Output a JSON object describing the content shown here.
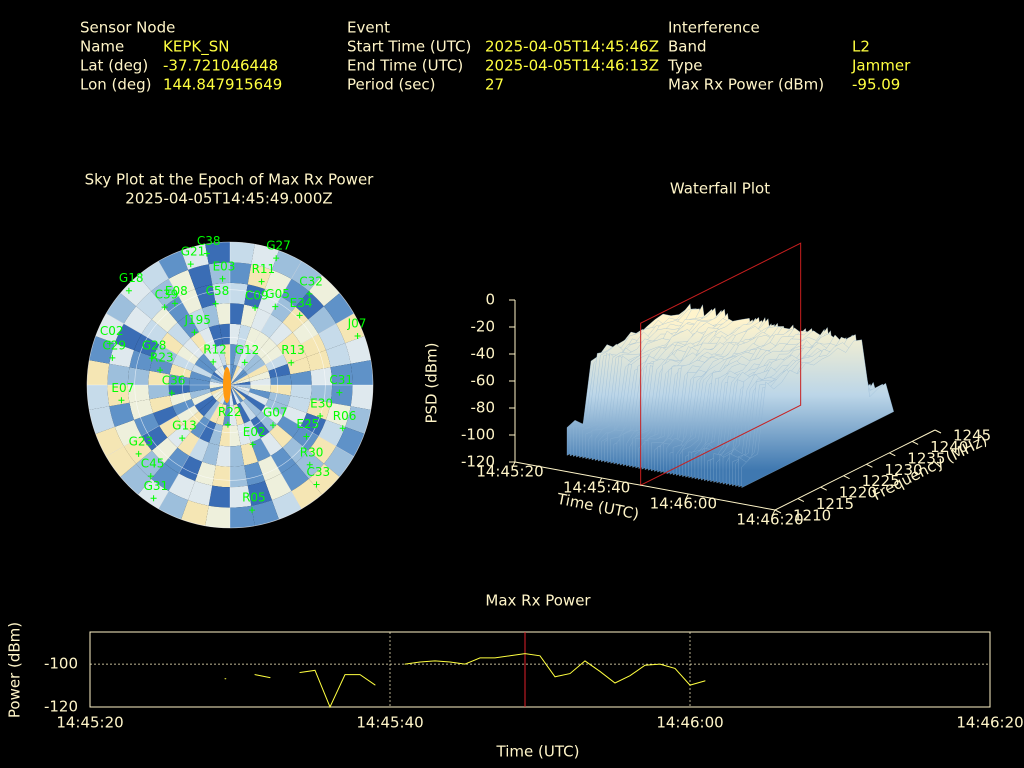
{
  "header": {
    "sensor_node": {
      "title": "Sensor Node",
      "rows": [
        [
          "Name",
          "KEPK_SN"
        ],
        [
          "Lat (deg)",
          "-37.721046448"
        ],
        [
          "Lon (deg)",
          "144.847915649"
        ]
      ]
    },
    "event": {
      "title": "Event",
      "rows": [
        [
          "Start Time (UTC)",
          "2025-04-05T14:45:46Z"
        ],
        [
          "End Time (UTC)",
          "2025-04-05T14:46:13Z"
        ],
        [
          "Period (sec)",
          "27"
        ]
      ]
    },
    "interference": {
      "title": "Interference",
      "rows": [
        [
          "Band",
          "L2"
        ],
        [
          "Type",
          "Jammer"
        ],
        [
          "Max Rx Power (dBm)",
          "-95.09"
        ]
      ]
    }
  },
  "chart_data": [
    {
      "type": "skyplot",
      "title": "Sky Plot at the Epoch of Max Rx Power",
      "subtitle": "2025-04-05T14:45:49.000Z",
      "color": "#00ff00",
      "satellites": [
        {
          "name": "C38",
          "az": 350,
          "el": 6
        },
        {
          "name": "G21",
          "az": 342,
          "el": 10
        },
        {
          "name": "E03",
          "az": 356,
          "el": 23
        },
        {
          "name": "R11",
          "az": 17,
          "el": 22
        },
        {
          "name": "G27",
          "az": 20,
          "el": 5
        },
        {
          "name": "C32",
          "az": 41,
          "el": 14
        },
        {
          "name": "E34",
          "az": 45,
          "el": 28
        },
        {
          "name": "G05",
          "az": 30,
          "el": 33
        },
        {
          "name": "C09",
          "az": 18,
          "el": 39
        },
        {
          "name": "J07",
          "az": 69,
          "el": 4
        },
        {
          "name": "G18",
          "az": 313,
          "el": 3
        },
        {
          "name": "E08",
          "az": 326,
          "el": 28
        },
        {
          "name": "C58",
          "az": 350,
          "el": 38
        },
        {
          "name": "C39",
          "az": 320,
          "el": 26
        },
        {
          "name": "J195",
          "az": 326,
          "el": 50
        },
        {
          "name": "C02",
          "az": 289,
          "el": 10
        },
        {
          "name": "C29",
          "az": 283,
          "el": 14
        },
        {
          "name": "G28",
          "az": 289,
          "el": 38
        },
        {
          "name": "R23",
          "az": 282,
          "el": 45
        },
        {
          "name": "R12",
          "az": 324,
          "el": 72
        },
        {
          "name": "G12",
          "az": 33,
          "el": 73
        },
        {
          "name": "R13",
          "az": 70,
          "el": 49
        },
        {
          "name": "C31",
          "az": 94,
          "el": 21
        },
        {
          "name": "E07",
          "az": 262,
          "el": 21
        },
        {
          "name": "C36",
          "az": 262,
          "el": 53
        },
        {
          "name": "R22",
          "az": 183,
          "el": 65
        },
        {
          "name": "G07",
          "az": 133,
          "el": 53
        },
        {
          "name": "E30",
          "az": 109,
          "el": 30
        },
        {
          "name": "R06",
          "az": 111,
          "el": 14
        },
        {
          "name": "E25",
          "az": 124,
          "el": 32
        },
        {
          "name": "G13",
          "az": 222,
          "el": 45
        },
        {
          "name": "E02",
          "az": 159,
          "el": 50
        },
        {
          "name": "G23",
          "az": 233,
          "el": 18
        },
        {
          "name": "R30",
          "az": 135,
          "el": 19
        },
        {
          "name": "C45",
          "az": 221,
          "el": 14
        },
        {
          "name": "G31",
          "az": 214,
          "el": 4
        },
        {
          "name": "R05",
          "az": 170,
          "el": 10
        },
        {
          "name": "C33",
          "az": 139,
          "el": 7
        }
      ]
    },
    {
      "type": "waterfall",
      "title": "Waterfall Plot",
      "zlabel": "PSD (dBm)",
      "xlabel": "Time (UTC)",
      "ylabel": "Frequency (MHz)",
      "zlim": [
        -120,
        0
      ],
      "zticks": [
        0,
        -20,
        -40,
        -60,
        -80,
        -100,
        -120
      ],
      "xlim": [
        "14:45:20",
        "14:46:20"
      ],
      "xticks": [
        "14:45:20",
        "14:45:40",
        "14:46:00",
        "14:46:20"
      ],
      "ylim": [
        1210,
        1245
      ],
      "yticks": [
        1210,
        1215,
        1220,
        1225,
        1230,
        1235,
        1240,
        1245
      ],
      "cursor": "14:45:49",
      "cursor_color": "#c81e1e"
    },
    {
      "type": "line",
      "title": "Max Rx Power",
      "xlabel": "Time (UTC)",
      "ylabel": "Power (dBm)",
      "color": "#ffff40",
      "x": [
        "14:45:29",
        "14:45:30",
        "14:45:31",
        "14:45:32",
        "14:45:33",
        "14:45:34",
        "14:45:35",
        "14:45:36",
        "14:45:37",
        "14:45:38",
        "14:45:39",
        "14:45:40",
        "14:45:41",
        "14:45:42",
        "14:45:43",
        "14:45:44",
        "14:45:45",
        "14:45:46",
        "14:45:47",
        "14:45:48",
        "14:45:49",
        "14:45:50",
        "14:45:51",
        "14:45:52",
        "14:45:53",
        "14:45:54",
        "14:45:55",
        "14:45:56",
        "14:45:57",
        "14:45:58",
        "14:45:59",
        "14:46:00",
        "14:46:01"
      ],
      "values": [
        -106.8,
        null,
        -104.9,
        -106.3,
        null,
        -103.9,
        -102.9,
        -120,
        -104.9,
        -104.9,
        -109.7,
        null,
        -100.0,
        -99.0,
        -98.5,
        -99.0,
        -100.0,
        -97.1,
        -97.1,
        -96.1,
        -95.1,
        -96.1,
        -105.9,
        -104.4,
        -98.5,
        -103.4,
        -108.8,
        -105.4,
        -100.5,
        -100.0,
        -102.0,
        -109.8,
        -107.8
      ],
      "xlim": [
        "14:45:20",
        "14:46:20"
      ],
      "xticks": [
        "14:45:20",
        "14:45:40",
        "14:46:00",
        "14:46:20"
      ],
      "ylim": [
        -120,
        -85
      ],
      "yticks": [
        -120,
        -100
      ],
      "grid": true,
      "cursor": "14:45:49",
      "cursor_color": "#e0202a"
    }
  ]
}
